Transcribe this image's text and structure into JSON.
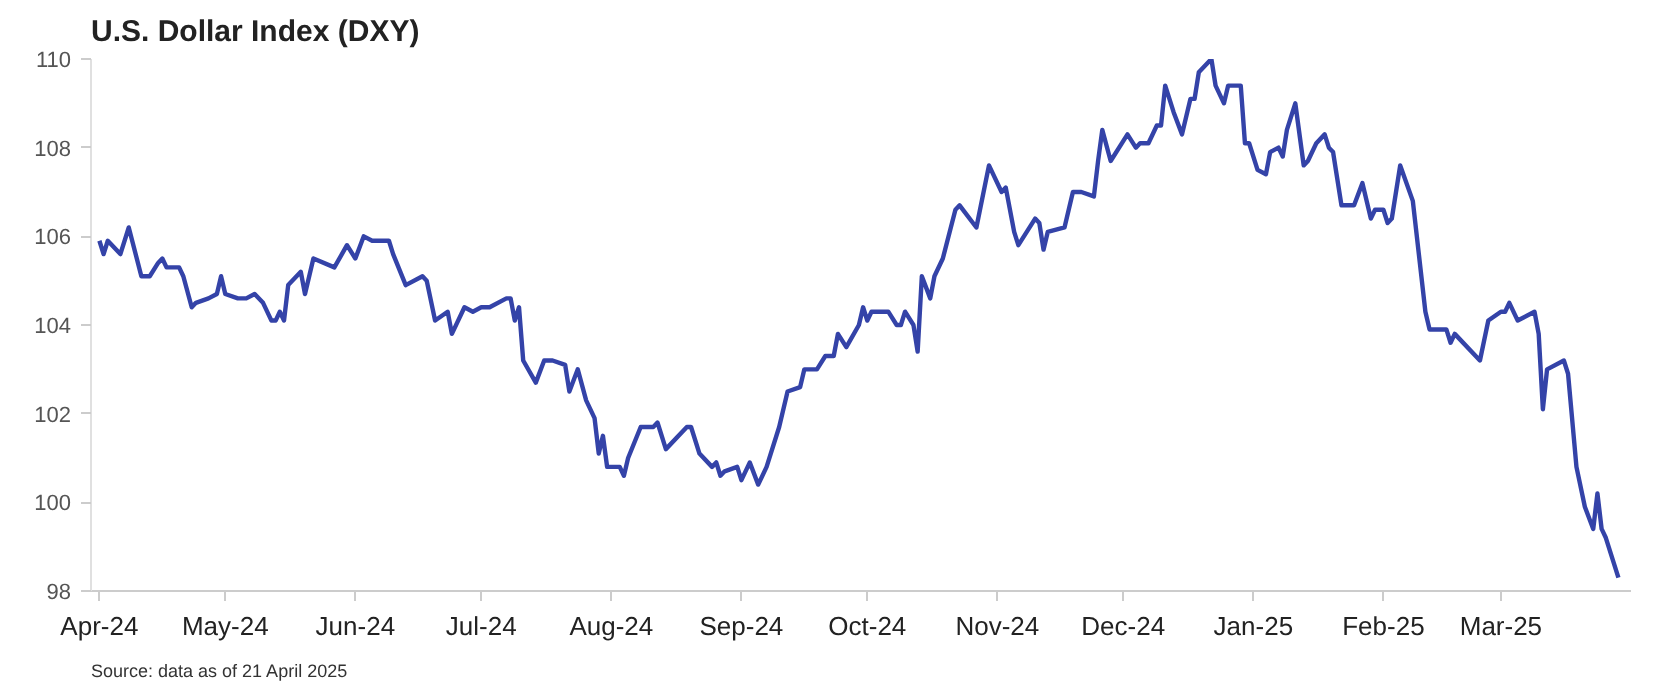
{
  "chart_data": {
    "type": "line",
    "title": "U.S. Dollar Index (DXY)",
    "annotations": [
      "Source: data as of 21 April 2025"
    ],
    "x": [
      "2024-04-01",
      "2024-04-02",
      "2024-04-03",
      "2024-04-06",
      "2024-04-08",
      "2024-04-11",
      "2024-04-13",
      "2024-04-15",
      "2024-04-16",
      "2024-04-17",
      "2024-04-20",
      "2024-04-21",
      "2024-04-23",
      "2024-04-24",
      "2024-04-27",
      "2024-04-29",
      "2024-04-30",
      "2024-05-01",
      "2024-05-04",
      "2024-05-06",
      "2024-05-08",
      "2024-05-10",
      "2024-05-12",
      "2024-05-13",
      "2024-05-14",
      "2024-05-15",
      "2024-05-16",
      "2024-05-19",
      "2024-05-20",
      "2024-05-22",
      "2024-05-27",
      "2024-05-30",
      "2024-06-01",
      "2024-06-03",
      "2024-06-05",
      "2024-06-09",
      "2024-06-10",
      "2024-06-13",
      "2024-06-17",
      "2024-06-18",
      "2024-06-20",
      "2024-06-23",
      "2024-06-24",
      "2024-06-27",
      "2024-06-29",
      "2024-07-01",
      "2024-07-03",
      "2024-07-07",
      "2024-07-08",
      "2024-07-09",
      "2024-07-10",
      "2024-07-11",
      "2024-07-14",
      "2024-07-16",
      "2024-07-18",
      "2024-07-21",
      "2024-07-22",
      "2024-07-24",
      "2024-07-26",
      "2024-07-28",
      "2024-07-29",
      "2024-07-30",
      "2024-07-31",
      "2024-08-03",
      "2024-08-04",
      "2024-08-05",
      "2024-08-08",
      "2024-08-11",
      "2024-08-12",
      "2024-08-14",
      "2024-08-19",
      "2024-08-20",
      "2024-08-22",
      "2024-08-25",
      "2024-08-26",
      "2024-08-27",
      "2024-08-28",
      "2024-08-31",
      "2024-09-01",
      "2024-09-03",
      "2024-09-05",
      "2024-09-07",
      "2024-09-10",
      "2024-09-12",
      "2024-09-15",
      "2024-09-16",
      "2024-09-18",
      "2024-09-19",
      "2024-09-21",
      "2024-09-23",
      "2024-09-24",
      "2024-09-26",
      "2024-09-29",
      "2024-09-30",
      "2024-10-01",
      "2024-10-02",
      "2024-10-06",
      "2024-10-08",
      "2024-10-09",
      "2024-10-10",
      "2024-10-12",
      "2024-10-13",
      "2024-10-14",
      "2024-10-16",
      "2024-10-17",
      "2024-10-19",
      "2024-10-22",
      "2024-10-23",
      "2024-10-27",
      "2024-10-30",
      "2024-11-02",
      "2024-11-03",
      "2024-11-05",
      "2024-11-06",
      "2024-11-10",
      "2024-11-11",
      "2024-11-12",
      "2024-11-13",
      "2024-11-17",
      "2024-11-19",
      "2024-11-21",
      "2024-11-24",
      "2024-11-25",
      "2024-11-26",
      "2024-11-28",
      "2024-12-02",
      "2024-12-04",
      "2024-12-05",
      "2024-12-07",
      "2024-12-09",
      "2024-12-10",
      "2024-12-11",
      "2024-12-13",
      "2024-12-15",
      "2024-12-17",
      "2024-12-18",
      "2024-12-19",
      "2024-12-22",
      "2024-12-23",
      "2024-12-25",
      "2024-12-26",
      "2024-12-29",
      "2024-12-30",
      "2024-12-31",
      "2025-01-02",
      "2025-01-04",
      "2025-01-05",
      "2025-01-07",
      "2025-01-08",
      "2025-01-09",
      "2025-01-11",
      "2025-01-13",
      "2025-01-14",
      "2025-01-16",
      "2025-01-18",
      "2025-01-19",
      "2025-01-20",
      "2025-01-22",
      "2025-01-25",
      "2025-01-27",
      "2025-01-29",
      "2025-01-30",
      "2025-02-01",
      "2025-02-02",
      "2025-02-03",
      "2025-02-05",
      "2025-02-08",
      "2025-02-11",
      "2025-02-12",
      "2025-02-16",
      "2025-02-17",
      "2025-02-18",
      "2025-02-24",
      "2025-02-26",
      "2025-03-01",
      "2025-03-02",
      "2025-03-03",
      "2025-03-05",
      "2025-03-09",
      "2025-03-10",
      "2025-03-11",
      "2025-03-12",
      "2025-03-16",
      "2025-03-17",
      "2025-03-19",
      "2025-03-21",
      "2025-03-23",
      "2025-03-24",
      "2025-03-25",
      "2025-03-26",
      "2025-03-29"
    ],
    "series": [
      {
        "color": "#3443a8",
        "values": [
          105.9,
          105.6,
          105.9,
          105.6,
          106.2,
          105.1,
          105.1,
          105.4,
          105.5,
          105.3,
          105.3,
          105.1,
          104.4,
          104.5,
          104.6,
          104.7,
          105.1,
          104.7,
          104.6,
          104.6,
          104.7,
          104.5,
          104.1,
          104.1,
          104.3,
          104.1,
          104.9,
          105.2,
          104.7,
          105.5,
          105.3,
          105.8,
          105.5,
          106.0,
          105.9,
          105.9,
          105.6,
          104.9,
          105.1,
          105.0,
          104.1,
          104.3,
          103.8,
          104.4,
          104.3,
          104.4,
          104.4,
          104.6,
          104.6,
          104.1,
          104.4,
          103.2,
          102.7,
          103.2,
          103.2,
          103.1,
          102.5,
          103.0,
          102.3,
          101.9,
          101.1,
          101.5,
          100.8,
          100.8,
          100.6,
          101.0,
          101.7,
          101.7,
          101.8,
          101.2,
          101.7,
          101.7,
          101.1,
          100.8,
          100.9,
          100.6,
          100.7,
          100.8,
          100.5,
          100.9,
          100.4,
          100.8,
          101.7,
          102.5,
          102.6,
          103.0,
          103.0,
          103.0,
          103.3,
          103.3,
          103.8,
          103.5,
          104.0,
          104.4,
          104.1,
          104.3,
          104.3,
          104.0,
          104.0,
          104.3,
          104.0,
          103.4,
          105.1,
          104.6,
          105.1,
          105.5,
          106.6,
          106.7,
          106.2,
          107.6,
          107.0,
          107.1,
          106.1,
          105.8,
          106.4,
          106.3,
          105.7,
          106.1,
          106.2,
          107.0,
          107.0,
          106.9,
          107.7,
          108.4,
          107.7,
          108.3,
          108.0,
          108.1,
          108.1,
          108.5,
          108.5,
          109.4,
          108.8,
          108.3,
          109.1,
          109.1,
          109.7,
          110.0,
          109.4,
          109.0,
          109.4,
          109.4,
          108.1,
          108.1,
          107.5,
          107.4,
          107.9,
          108.0,
          107.8,
          108.4,
          109.0,
          107.6,
          107.7,
          108.1,
          108.3,
          108.0,
          107.9,
          106.7,
          106.7,
          107.2,
          106.4,
          106.6,
          106.6,
          106.3,
          106.4,
          107.6,
          106.8,
          104.3,
          103.9,
          103.9,
          103.6,
          103.8,
          103.2,
          104.1,
          104.3,
          104.3,
          104.5,
          104.1,
          104.3,
          103.8,
          102.1,
          103.0,
          103.2,
          102.9,
          100.8,
          99.9,
          99.4,
          100.2,
          99.4,
          99.2,
          98.3
        ]
      }
    ],
    "xlim": [
      "2024-03-30",
      "2025-04-01"
    ],
    "xticks": [
      {
        "value": "2024-04-01",
        "label": "Apr-24"
      },
      {
        "value": "2024-05-01",
        "label": "May-24"
      },
      {
        "value": "2024-06-01",
        "label": "Jun-24"
      },
      {
        "value": "2024-07-01",
        "label": "Jul-24"
      },
      {
        "value": "2024-08-01",
        "label": "Aug-24"
      },
      {
        "value": "2024-09-01",
        "label": "Sep-24"
      },
      {
        "value": "2024-10-01",
        "label": "Oct-24"
      },
      {
        "value": "2024-11-01",
        "label": "Nov-24"
      },
      {
        "value": "2024-12-01",
        "label": "Dec-24"
      },
      {
        "value": "2025-01-01",
        "label": "Jan-25"
      },
      {
        "value": "2025-02-01",
        "label": "Feb-25"
      },
      {
        "value": "2025-03-01",
        "label": "Mar-25"
      }
    ],
    "ylim": [
      98,
      110
    ],
    "yticks": [
      98,
      100,
      102,
      104,
      106,
      108,
      110
    ],
    "grid": false,
    "marker": "none",
    "line_style": "solid"
  }
}
